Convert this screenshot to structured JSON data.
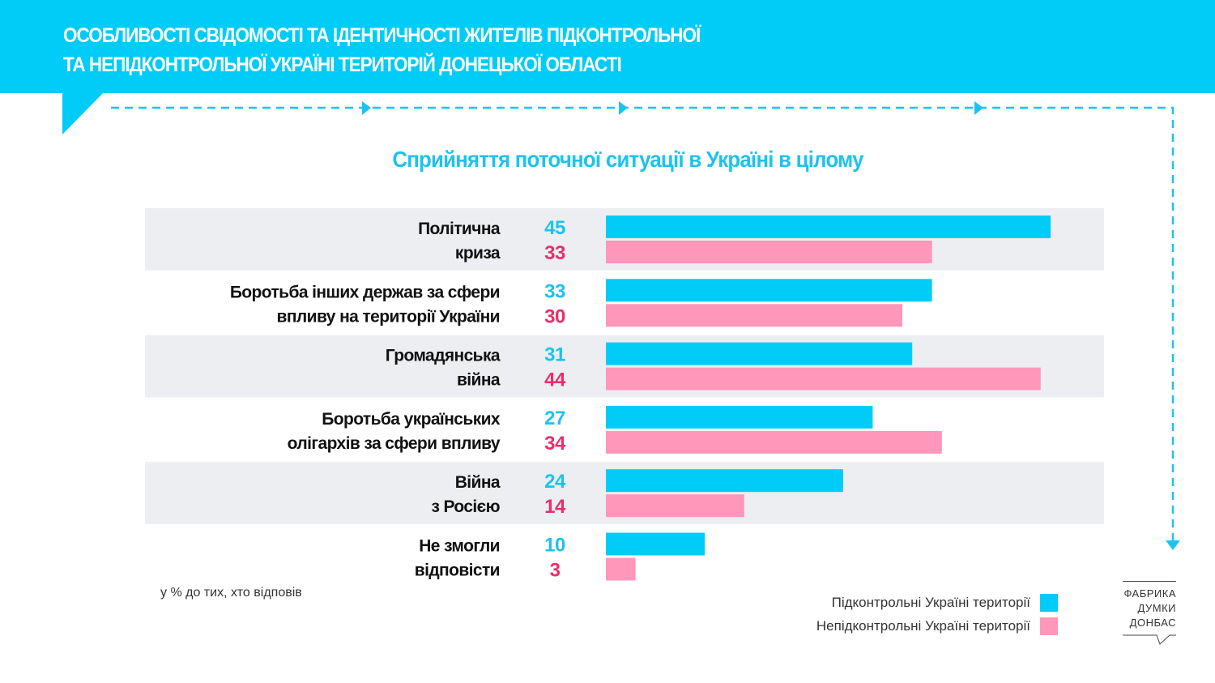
{
  "header": {
    "title_line1": "ОСОБЛИВОСТІ СВІДОМОСТІ ТА ІДЕНТИЧНОСТІ ЖИТЕЛІВ ПІДКОНТРОЛЬНОЇ",
    "title_line2": "ТА НЕПІДКОНТРОЛЬНОЇ УКРАЇНІ ТЕРИТОРІЙ ДОНЕЦЬКОЇ ОБЛАСТІ"
  },
  "colors": {
    "brand": "#00CCF7",
    "series_controlled_bar": "#00CCF7",
    "series_uncontrolled_bar": "#FF97BA",
    "series_controlled_text": "#1CC3EF",
    "series_uncontrolled_text": "#EC2D6B",
    "band": "#ECEEF1"
  },
  "chart_data": {
    "type": "bar",
    "orientation": "horizontal",
    "title": "Сприйняття поточної ситуації в Україні в цілому",
    "unit_note": "у % до тих, хто відповів",
    "categories": [
      [
        "Політична",
        "криза"
      ],
      [
        "Боротьба інших держав за сфери",
        "впливу на території України"
      ],
      [
        "Громадянська",
        "війна"
      ],
      [
        "Боротьба українських",
        "олігархів за сфери впливу"
      ],
      [
        "Війна",
        "з Росією"
      ],
      [
        "Не змогли",
        "відповісти"
      ]
    ],
    "series": [
      {
        "name": "Підконтрольні Україні території",
        "values": [
          45,
          33,
          31,
          27,
          24,
          10
        ]
      },
      {
        "name": "Непідконтрольні Україні території",
        "values": [
          33,
          30,
          44,
          34,
          14,
          3
        ]
      }
    ],
    "xlim": [
      0,
      50
    ],
    "grid": false,
    "alternating_bands": true,
    "legend_position": "bottom-right"
  },
  "logo": {
    "lines": [
      "ФАБРИКА",
      "ДУМКИ",
      "ДОНБАС"
    ]
  }
}
